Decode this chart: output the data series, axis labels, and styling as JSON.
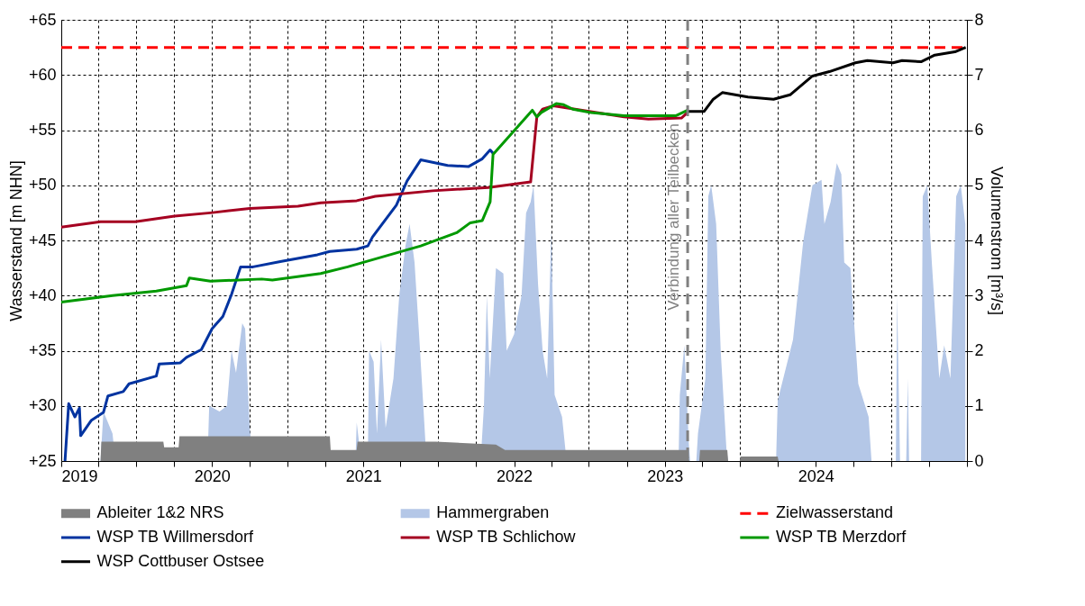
{
  "chart_data": {
    "type": "line",
    "ylabel": "Wasserstand [m NHN]",
    "y2label": "Volumenstrom [m³/s]",
    "xlim": [
      "2019-01-01",
      "2025-01-01"
    ],
    "xticks": [
      {
        "value": "2019-01-01",
        "label": "2019"
      },
      {
        "value": "2019-04-01",
        "label": null
      },
      {
        "value": "2019-07-01",
        "label": null
      },
      {
        "value": "2019-10-01",
        "label": null
      },
      {
        "value": "2020-01-01",
        "label": "2020"
      },
      {
        "value": "2020-04-01",
        "label": null
      },
      {
        "value": "2020-07-01",
        "label": null
      },
      {
        "value": "2020-10-01",
        "label": null
      },
      {
        "value": "2021-01-01",
        "label": "2021"
      },
      {
        "value": "2021-04-01",
        "label": null
      },
      {
        "value": "2021-07-01",
        "label": null
      },
      {
        "value": "2021-10-01",
        "label": null
      },
      {
        "value": "2022-01-01",
        "label": "2022"
      },
      {
        "value": "2022-04-01",
        "label": null
      },
      {
        "value": "2022-07-01",
        "label": null
      },
      {
        "value": "2022-10-01",
        "label": null
      },
      {
        "value": "2023-01-01",
        "label": "2023"
      },
      {
        "value": "2023-04-01",
        "label": null
      },
      {
        "value": "2023-07-01",
        "label": null
      },
      {
        "value": "2023-10-01",
        "label": null
      },
      {
        "value": "2024-01-01",
        "label": "2024"
      },
      {
        "value": "2024-04-01",
        "label": null
      },
      {
        "value": "2024-07-01",
        "label": null
      },
      {
        "value": "2024-10-01",
        "label": null
      },
      {
        "value": "2025-01-01",
        "label": null
      }
    ],
    "ylim": [
      25,
      65
    ],
    "yticks": [
      {
        "value": 25,
        "label": "+25"
      },
      {
        "value": 30,
        "label": "+30"
      },
      {
        "value": 35,
        "label": "+35"
      },
      {
        "value": 40,
        "label": "+40"
      },
      {
        "value": 45,
        "label": "+45"
      },
      {
        "value": 50,
        "label": "+50"
      },
      {
        "value": 55,
        "label": "+55"
      },
      {
        "value": 60,
        "label": "+60"
      },
      {
        "value": 65,
        "label": "+65"
      }
    ],
    "y2lim": [
      0,
      8
    ],
    "y2ticks": [
      0,
      1,
      2,
      3,
      4,
      5,
      6,
      7,
      8
    ],
    "grid": true,
    "legend": "bottom",
    "series": [
      {
        "name": "Ableiter 1&2 NRS",
        "type": "area",
        "axis": "y2",
        "color": "#808080",
        "x": [
          "2019-04-06",
          "2019-04-08",
          "2019-09-05",
          "2019-09-07",
          "2019-10-12",
          "2019-10-14",
          "2020-10-12",
          "2020-10-14",
          "2020-12-16",
          "2020-12-18",
          "2021-06-25",
          "2021-11-18",
          "2021-12-10",
          "2023-02-25",
          "2023-03-01",
          "2023-03-25",
          "2023-03-27",
          "2023-06-01",
          "2023-06-03",
          "2023-07-01",
          "2023-07-03",
          "2023-10-01",
          "2023-10-03"
        ],
        "values": [
          0,
          0.35,
          0.35,
          0.25,
          0.25,
          0.45,
          0.45,
          0.2,
          0.2,
          0.35,
          0.35,
          0.3,
          0.2,
          0.2,
          0,
          0,
          0.2,
          0.2,
          0,
          0,
          0.08,
          0.08,
          0
        ]
      },
      {
        "name": "Hammergraben",
        "type": "area",
        "axis": "y2",
        "color": "#b4c7e7",
        "x": [
          "2019-04-06",
          "2019-04-13",
          "2019-05-05",
          "2019-05-12",
          "2019-12-21",
          "2019-12-25",
          "2020-01-19",
          "2020-02-06",
          "2020-02-17",
          "2020-02-28",
          "2020-03-14",
          "2020-03-21",
          "2020-04-01",
          "2020-04-09",
          "2020-12-13",
          "2020-12-16",
          "2020-12-27",
          "2021-01-12",
          "2021-01-15",
          "2021-01-26",
          "2021-02-03",
          "2021-02-13",
          "2021-02-24",
          "2021-03-15",
          "2021-03-29",
          "2021-04-13",
          "2021-04-23",
          "2021-05-05",
          "2021-05-16",
          "2021-05-27",
          "2021-06-03",
          "2021-10-12",
          "2021-10-20",
          "2021-10-27",
          "2021-11-03",
          "2021-11-18",
          "2021-12-06",
          "2021-12-14",
          "2022-01-01",
          "2022-01-19",
          "2022-01-30",
          "2022-02-10",
          "2022-02-17",
          "2022-02-28",
          "2022-03-11",
          "2022-03-22",
          "2022-04-01",
          "2022-04-09",
          "2022-04-27",
          "2022-05-08",
          "2023-02-03",
          "2023-02-06",
          "2023-02-17",
          "2023-02-28",
          "2023-03-03",
          "2023-03-18",
          "2023-03-22",
          "2023-04-09",
          "2023-04-16",
          "2023-04-23",
          "2023-05-05",
          "2023-05-16",
          "2023-05-30",
          "2023-06-03",
          "2023-09-27",
          "2023-10-01",
          "2023-11-07",
          "2023-12-02",
          "2023-12-24",
          "2024-01-15",
          "2024-01-22",
          "2024-02-06",
          "2024-02-21",
          "2024-03-03",
          "2024-03-10",
          "2024-03-25",
          "2024-04-13",
          "2024-05-08",
          "2024-05-15",
          "2024-07-13",
          "2024-07-16",
          "2024-07-23",
          "2024-08-07",
          "2024-08-11",
          "2024-08-14",
          "2024-09-12",
          "2024-09-16",
          "2024-09-27",
          "2024-10-08",
          "2024-10-26",
          "2024-11-07",
          "2024-11-22",
          "2024-12-06",
          "2024-12-17",
          "2024-12-28"
        ],
        "values": [
          0,
          0.9,
          0.5,
          0,
          0,
          1.0,
          0.9,
          1.0,
          2.0,
          1.6,
          2.5,
          2.4,
          0.6,
          0,
          0,
          0.7,
          0,
          0,
          2.0,
          1.8,
          0.5,
          2.2,
          0.6,
          1.5,
          3.0,
          3.9,
          4.3,
          3.6,
          2.3,
          0.9,
          0,
          0,
          1.0,
          3.0,
          1.5,
          3.5,
          3.4,
          2.0,
          2.3,
          3.0,
          4.5,
          4.7,
          5.0,
          3.2,
          2.0,
          1.5,
          4.2,
          1.2,
          0.8,
          0,
          0,
          1.2,
          2.1,
          0.3,
          0,
          0,
          0.5,
          1.5,
          4.8,
          5.0,
          4.3,
          2.0,
          0.2,
          0,
          0,
          1.1,
          2.2,
          4.0,
          5.0,
          5.1,
          4.3,
          4.7,
          5.4,
          5.2,
          3.6,
          3.5,
          1.4,
          0.8,
          0,
          0,
          3.0,
          0,
          0,
          1.5,
          0,
          0,
          4.8,
          5.0,
          3.6,
          1.5,
          2.1,
          1.5,
          4.8,
          5.0,
          4.3
        ]
      },
      {
        "name": "Zielwasserstand",
        "type": "line",
        "line_style": "dashed",
        "color": "#ff0000",
        "x": [
          "2019-01-01",
          "2025-01-01"
        ],
        "values": [
          62.5,
          62.5
        ]
      },
      {
        "name": "WSP TB Willmersdorf",
        "type": "line",
        "color": "#0033a0",
        "x": [
          "2019-01-10",
          "2019-01-19",
          "2019-02-03",
          "2019-02-14",
          "2019-02-17",
          "2019-03-15",
          "2019-04-13",
          "2019-04-24",
          "2019-05-31",
          "2019-06-14",
          "2019-08-19",
          "2019-08-26",
          "2019-10-16",
          "2019-10-31",
          "2019-12-06",
          "2020-01-01",
          "2020-01-27",
          "2020-02-17",
          "2020-03-10",
          "2020-04-09",
          "2020-06-17",
          "2020-09-12",
          "2020-10-12",
          "2020-12-16",
          "2021-01-12",
          "2021-01-23",
          "2021-03-22",
          "2021-04-17",
          "2021-05-20",
          "2021-07-24",
          "2021-09-13",
          "2021-10-16",
          "2021-11-04",
          "2021-11-11"
        ],
        "values": [
          25.0,
          30.2,
          29.0,
          29.8,
          27.3,
          28.7,
          29.4,
          30.9,
          31.3,
          32.0,
          32.7,
          33.8,
          33.9,
          34.4,
          35.1,
          37.0,
          38.1,
          40.1,
          42.6,
          42.6,
          43.1,
          43.7,
          44.0,
          44.2,
          44.5,
          45.3,
          48.2,
          50.4,
          52.3,
          51.8,
          51.7,
          52.4,
          53.2,
          52.9
        ]
      },
      {
        "name": "WSP TB Schlichow",
        "type": "line",
        "color": "#a50021",
        "x": [
          "2019-01-01",
          "2019-04-06",
          "2019-06-29",
          "2019-10-02",
          "2019-12-28",
          "2020-04-01",
          "2020-07-27",
          "2020-09-20",
          "2020-12-16",
          "2021-01-30",
          "2021-06-18",
          "2021-10-31",
          "2022-02-10",
          "2022-02-25",
          "2022-03-11",
          "2022-04-06",
          "2022-09-24",
          "2022-11-22",
          "2023-02-10",
          "2023-02-25"
        ],
        "values": [
          46.2,
          46.7,
          46.7,
          47.2,
          47.5,
          47.9,
          48.1,
          48.4,
          48.6,
          49.0,
          49.5,
          49.8,
          50.3,
          56.2,
          56.9,
          57.2,
          56.2,
          56.0,
          56.1,
          56.6
        ]
      },
      {
        "name": "WSP TB Merzdorf",
        "type": "line",
        "color": "#009900",
        "x": [
          "2019-01-01",
          "2019-05-05",
          "2019-08-19",
          "2019-10-31",
          "2019-11-07",
          "2019-12-28",
          "2020-04-30",
          "2020-05-26",
          "2020-09-20",
          "2020-11-24",
          "2021-05-20",
          "2021-08-15",
          "2021-09-17",
          "2021-10-16",
          "2021-11-04",
          "2021-11-11",
          "2022-02-14",
          "2022-02-25",
          "2022-03-08",
          "2022-04-13",
          "2022-05-01",
          "2022-05-23",
          "2022-07-06",
          "2022-09-24",
          "2023-01-27",
          "2023-02-25"
        ],
        "values": [
          39.4,
          40.0,
          40.4,
          40.9,
          41.6,
          41.3,
          41.5,
          41.4,
          42.0,
          42.6,
          44.5,
          45.7,
          46.6,
          46.8,
          48.5,
          52.8,
          56.8,
          56.2,
          56.6,
          57.4,
          57.3,
          56.9,
          56.6,
          56.3,
          56.3,
          56.8
        ]
      },
      {
        "name": "WSP Cottbuser Ostsee",
        "type": "line",
        "color": "#000000",
        "x": [
          "2023-02-25",
          "2023-04-06",
          "2023-04-28",
          "2023-05-20",
          "2023-07-21",
          "2023-09-21",
          "2023-10-31",
          "2023-12-24",
          "2024-02-03",
          "2024-04-06",
          "2024-05-05",
          "2024-07-06",
          "2024-07-28",
          "2024-09-12",
          "2024-10-15",
          "2024-12-03",
          "2024-12-29"
        ],
        "values": [
          56.7,
          56.7,
          57.8,
          58.4,
          58.0,
          57.8,
          58.2,
          59.9,
          60.3,
          61.1,
          61.3,
          61.1,
          61.3,
          61.2,
          61.8,
          62.1,
          62.5
        ]
      }
    ],
    "ref_lines": [
      {
        "axis": "x",
        "value": "2023-02-25",
        "label": "Verbindung aller Teilbecken",
        "color": "#808080",
        "line_style": "dashed"
      }
    ]
  }
}
